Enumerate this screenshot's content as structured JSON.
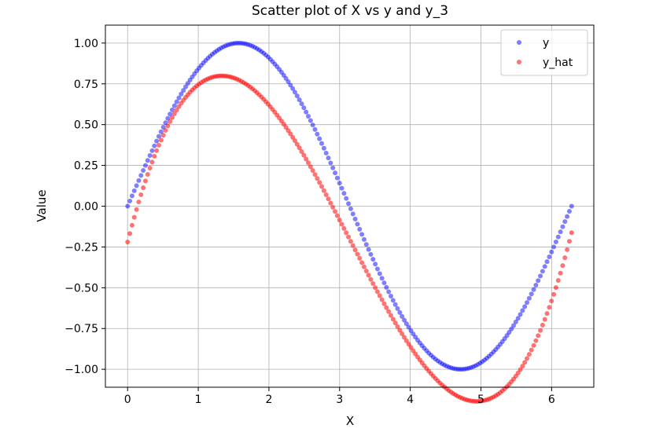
{
  "chart_data": {
    "type": "scatter",
    "title": "Scatter plot of X vs y and y_3",
    "xlabel": "X",
    "ylabel": "Value",
    "xlim": [
      -0.3142,
      6.5973
    ],
    "ylim": [
      -1.11,
      1.11
    ],
    "xticks": [
      0,
      1,
      2,
      3,
      4,
      5,
      6
    ],
    "xtick_labels": [
      "0",
      "1",
      "2",
      "3",
      "4",
      "5",
      "6"
    ],
    "yticks": [
      -1.0,
      -0.75,
      -0.5,
      -0.25,
      0.0,
      0.25,
      0.5,
      0.75,
      1.0
    ],
    "ytick_labels": [
      "−1.00",
      "−0.75",
      "−0.50",
      "−0.25",
      "0.00",
      "0.25",
      "0.50",
      "0.75",
      "1.00"
    ],
    "grid": true,
    "legend_position": "top-right",
    "series": [
      {
        "name": "y",
        "color": "#0000ff",
        "alpha": 0.5,
        "x_start": 0,
        "x_end": 6.2832,
        "count": 200,
        "description_formula": "sin(x)"
      },
      {
        "name": "y_hat",
        "color": "#ff0000",
        "alpha": 0.55,
        "x_start": 0,
        "x_end": 6.2832,
        "count": 200,
        "description_formula": "cubic polynomial fit of sin(x)"
      }
    ]
  }
}
